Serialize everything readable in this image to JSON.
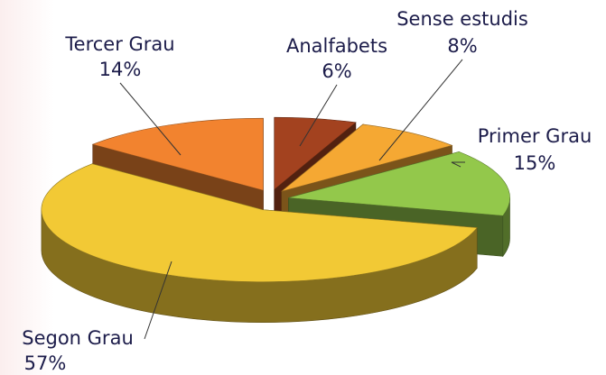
{
  "chart_data": {
    "type": "pie",
    "categories": [
      "Analfabets",
      "Sense estudis",
      "Primer Grau",
      "Segon Grau",
      "Tercer Grau"
    ],
    "values": [
      6,
      8,
      15,
      57,
      14
    ],
    "value_labels": [
      "6%",
      "8%",
      "15%",
      "57%",
      "14%"
    ],
    "colors": [
      "#a3421f",
      "#f5a833",
      "#93c84b",
      "#f2c935",
      "#f2832f"
    ]
  }
}
